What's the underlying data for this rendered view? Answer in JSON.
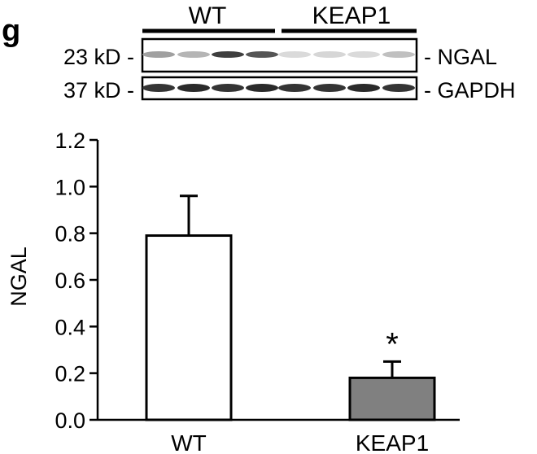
{
  "panel_label": "g",
  "blot": {
    "groups": [
      "WT",
      "KEAP1"
    ],
    "rows": [
      {
        "marker": "23 kD -",
        "protein": "- NGAL",
        "band_intensities": [
          0.35,
          0.25,
          0.8,
          0.7,
          0.08,
          0.1,
          0.08,
          0.2
        ]
      },
      {
        "marker": "37 kD -",
        "protein": "- GAPDH",
        "band_intensities": [
          0.85,
          0.9,
          0.85,
          0.9,
          0.85,
          0.85,
          0.9,
          0.85
        ]
      }
    ]
  },
  "chart_data": {
    "type": "bar",
    "categories": [
      "WT",
      "KEAP1"
    ],
    "values": [
      0.79,
      0.18
    ],
    "errors": [
      0.17,
      0.07
    ],
    "bar_colors": [
      "#ffffff",
      "#808080"
    ],
    "significance": [
      "",
      "*"
    ],
    "ylabel": "NGAL",
    "xlabel": "",
    "ylim": [
      0.0,
      1.2
    ],
    "yticks": [
      "0.0",
      "0.2",
      "0.4",
      "0.6",
      "0.8",
      "1.0",
      "1.2"
    ],
    "grid": false
  }
}
